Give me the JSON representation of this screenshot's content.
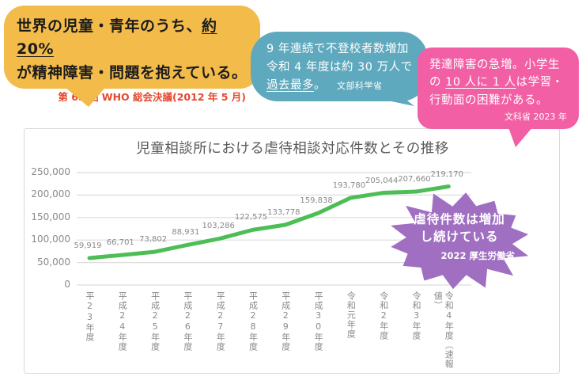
{
  "bubbles": {
    "who": {
      "line1_pre": "世界の児童・青年のうち、",
      "line1_underline": "約 20%",
      "line2": "が精神障害・問題を抱えている。",
      "source": "第 65 回 WHO 総会決議(2012 年 5 月)",
      "bg": "#F3BB4A",
      "source_color": "#E5492D"
    },
    "futoko": {
      "line1": "9 年連続で不登校者数増加",
      "line2": "令和 4 年度は約 30 万人で",
      "line3_underline": "過去最多",
      "line3_post": "。",
      "source": "文部科学省",
      "bg": "#5FA9BE"
    },
    "hattatsu": {
      "line1": "発達障害の急増。小学生",
      "line2_pre": "の ",
      "line2_underline": "10 人に 1 人",
      "line2_post": "は学習・",
      "line3": "行動面の困難がある。",
      "source": "文科省 2023 年",
      "bg": "#F25FA4"
    },
    "gyakutai": {
      "line1": "虐待件数は増加",
      "line2": "し続けている",
      "source": "2022 厚生労働省",
      "bg": "#A06FC2"
    }
  },
  "chart_data": {
    "type": "line",
    "title": "児童相談所における虐待相談対応件数とその推移",
    "categories": [
      "平23年度",
      "平成24年度",
      "平成25年度",
      "平成26年度",
      "平成27年度",
      "平成28年度",
      "平成29年度",
      "平成30年度",
      "令和元年度",
      "令和2年度",
      "令和3年度",
      "令和4年度（速報値）"
    ],
    "values": [
      59919,
      66701,
      73802,
      88931,
      103286,
      122575,
      133778,
      159838,
      193780,
      205044,
      207660,
      219170
    ],
    "y_ticks": [
      0,
      50000,
      100000,
      150000,
      200000,
      250000
    ],
    "ylim": [
      0,
      250000
    ],
    "line_color": "#4CBE55",
    "grid_color": "#DCDCDC",
    "label_color": "#8a8a8a",
    "grid": true,
    "legend": "none",
    "data_labels": true
  }
}
